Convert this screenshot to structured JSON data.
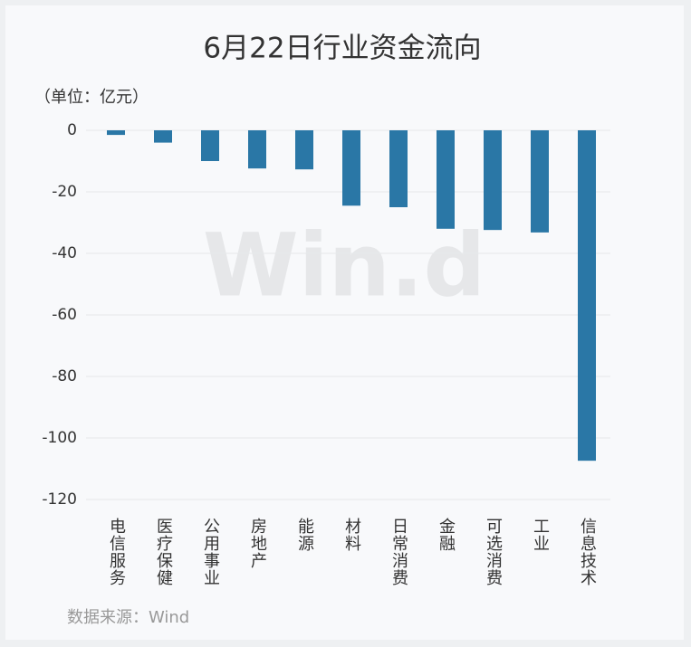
{
  "chart_data": {
    "type": "bar",
    "title": "6月22日行业资金流向",
    "unit_label": "（单位：亿元）",
    "source": "数据来源：Wind",
    "watermark": "Win.d",
    "categories": [
      "电信服务",
      "医疗保健",
      "公用事业",
      "房地产",
      "能源",
      "材料",
      "日常消费",
      "金融",
      "可选消费",
      "工业",
      "信息技术"
    ],
    "values": [
      -1.5,
      -4,
      -10,
      -12.4,
      -12.7,
      -24.5,
      -25,
      -32,
      -32.4,
      -33.2,
      -107.4
    ],
    "color": "#2a77a6",
    "ylim": [
      -120,
      0
    ],
    "yticks": [
      0,
      -20,
      -40,
      -60,
      -80,
      -100,
      -120
    ],
    "grid": true
  }
}
